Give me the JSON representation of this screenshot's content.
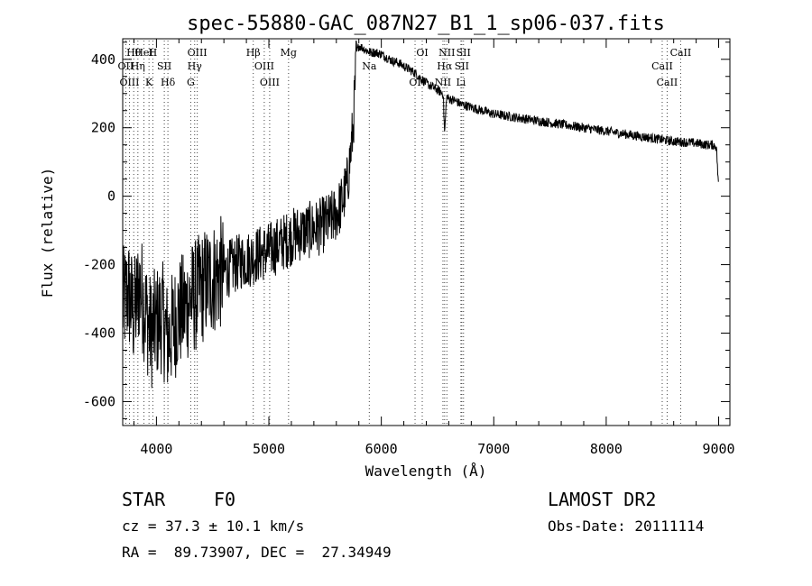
{
  "chart_data": {
    "type": "line",
    "title": "spec-55880-GAC_087N27_B1_1_sp06-037.fits",
    "xlabel": "Wavelength (Å)",
    "ylabel": "Flux (relative)",
    "xlim": [
      3700,
      9100
    ],
    "ylim": [
      -670,
      460
    ],
    "xticks": [
      4000,
      5000,
      6000,
      7000,
      8000,
      9000
    ],
    "yticks": [
      -600,
      -400,
      -200,
      0,
      200,
      400
    ],
    "grid": false,
    "series": [
      {
        "x": [
          3700,
          3750,
          3800,
          3850,
          3900,
          3950,
          4000,
          4050,
          4100,
          4150,
          4200,
          4250,
          4300,
          4350,
          4400,
          4450,
          4500,
          4550,
          4600,
          4650,
          4700,
          4750,
          4800,
          4850,
          4900,
          4950,
          5000,
          5050,
          5100,
          5150,
          5200,
          5250,
          5300,
          5350,
          5400,
          5450,
          5500,
          5550,
          5600,
          5650,
          5700,
          5750,
          5780,
          5800,
          5850,
          5900,
          5950,
          6000,
          6050,
          6100,
          6150,
          6200,
          6250,
          6300,
          6350,
          6400,
          6450,
          6500,
          6550,
          6563,
          6580,
          6600,
          6650,
          6700,
          6750,
          6800,
          6850,
          6900,
          6950,
          7000,
          7100,
          7200,
          7300,
          7400,
          7500,
          7600,
          7700,
          7800,
          7900,
          8000,
          8100,
          8200,
          8300,
          8400,
          8500,
          8600,
          8700,
          8800,
          8900,
          8950,
          8980,
          9000
        ],
        "y": [
          -320,
          -280,
          -350,
          -260,
          -330,
          -400,
          -370,
          -350,
          -420,
          -380,
          -340,
          -330,
          -300,
          -290,
          -270,
          -250,
          -240,
          -230,
          -220,
          -210,
          -200,
          -190,
          -185,
          -180,
          -170,
          -165,
          -160,
          -150,
          -140,
          -130,
          -120,
          -110,
          -105,
          -100,
          -95,
          -90,
          -80,
          -70,
          -50,
          -20,
          40,
          200,
          420,
          440,
          430,
          420,
          420,
          415,
          405,
          395,
          390,
          380,
          370,
          360,
          345,
          330,
          320,
          310,
          300,
          180,
          290,
          285,
          280,
          270,
          265,
          260,
          255,
          250,
          245,
          240,
          235,
          230,
          225,
          220,
          215,
          210,
          205,
          200,
          195,
          190,
          185,
          180,
          175,
          170,
          165,
          160,
          158,
          155,
          150,
          150,
          145,
          20
        ]
      }
    ],
    "lines": [
      {
        "label": "Hθ",
        "wl": 3798
      },
      {
        "label": "OII",
        "wl": 3727
      },
      {
        "label": "OIII",
        "wl": 3760
      },
      {
        "label": "HeI",
        "wl": 3889
      },
      {
        "label": "Hη",
        "wl": 3835
      },
      {
        "label": "K",
        "wl": 3934
      },
      {
        "label": "H",
        "wl": 3968
      },
      {
        "label": "SII",
        "wl": 4070
      },
      {
        "label": "Hδ",
        "wl": 4102
      },
      {
        "label": "OIII",
        "wl": 4363
      },
      {
        "label": "Hγ",
        "wl": 4340
      },
      {
        "label": "G",
        "wl": 4305
      },
      {
        "label": "Hβ",
        "wl": 4861
      },
      {
        "label": "OIII",
        "wl": 4959
      },
      {
        "label": "OIII",
        "wl": 5007
      },
      {
        "label": "Mg",
        "wl": 5175
      },
      {
        "label": "Na",
        "wl": 5893
      },
      {
        "label": "OI",
        "wl": 6300
      },
      {
        "label": "OI",
        "wl": 6364
      },
      {
        "label": "Hα",
        "wl": 6563
      },
      {
        "label": "NII",
        "wl": 6548
      },
      {
        "label": "NII",
        "wl": 6583
      },
      {
        "label": "SII",
        "wl": 6716
      },
      {
        "label": "Li",
        "wl": 6708
      },
      {
        "label": "SII",
        "wl": 6731
      },
      {
        "label": "CaII",
        "wl": 8498
      },
      {
        "label": "CaII",
        "wl": 8542
      },
      {
        "label": "CaII",
        "wl": 8662
      }
    ]
  },
  "footer": {
    "object_class": "STAR",
    "subclass": "F0",
    "survey": "LAMOST DR2",
    "cz": "cz = 37.3 ± 10.1 km/s",
    "obs_date": "Obs-Date: 20111114",
    "coords": "RA =  89.73907, DEC =  27.34949"
  }
}
